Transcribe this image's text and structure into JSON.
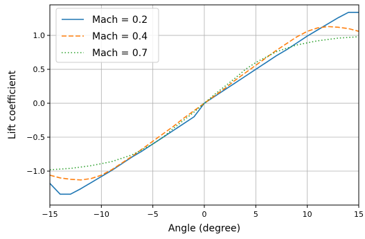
{
  "chart_data": {
    "type": "line",
    "xlabel": "Angle (degree)",
    "ylabel": "Lift coefficient",
    "xlim": [
      -15,
      15
    ],
    "ylim": [
      -1.5,
      1.45
    ],
    "xticks": [
      -15,
      -10,
      -5,
      0,
      5,
      10,
      15
    ],
    "yticks": [
      -1.0,
      -0.5,
      0.0,
      0.5,
      1.0
    ],
    "xtick_labels": [
      "−15",
      "−10",
      "−5",
      "0",
      "5",
      "10",
      "15"
    ],
    "ytick_labels": [
      "−1.0",
      "−0.5",
      "0.0",
      "0.5",
      "1.0"
    ],
    "grid": true,
    "legend_position": "top-left",
    "series": [
      {
        "name": "Mach = 0.2",
        "color": "#1f77b4",
        "style": "solid",
        "x": [
          -15,
          -14,
          -13,
          -12,
          -11,
          -10,
          -9,
          -8,
          -7,
          -6,
          -5,
          -4,
          -3,
          -2,
          -1,
          0,
          1,
          2,
          3,
          4,
          5,
          6,
          7,
          8,
          9,
          10,
          11,
          12,
          13,
          14,
          15
        ],
        "y": [
          -1.18,
          -1.34,
          -1.34,
          -1.26,
          -1.17,
          -1.08,
          -0.99,
          -0.89,
          -0.79,
          -0.7,
          -0.6,
          -0.5,
          -0.4,
          -0.3,
          -0.2,
          0.0,
          0.1,
          0.2,
          0.3,
          0.4,
          0.5,
          0.6,
          0.7,
          0.79,
          0.89,
          0.99,
          1.08,
          1.17,
          1.26,
          1.34,
          1.34
        ]
      },
      {
        "name": "Mach = 0.4",
        "color": "#ff7f0e",
        "style": "dashed",
        "x": [
          -15,
          -14,
          -13,
          -12,
          -11,
          -10,
          -9,
          -8,
          -7,
          -6,
          -5,
          -4,
          -3,
          -2,
          -1,
          0,
          1,
          2,
          3,
          4,
          5,
          6,
          7,
          8,
          9,
          10,
          11,
          12,
          13,
          14,
          15
        ],
        "y": [
          -1.06,
          -1.1,
          -1.12,
          -1.13,
          -1.11,
          -1.06,
          -0.98,
          -0.88,
          -0.78,
          -0.67,
          -0.56,
          -0.45,
          -0.34,
          -0.22,
          -0.11,
          0.0,
          0.11,
          0.22,
          0.34,
          0.45,
          0.56,
          0.67,
          0.78,
          0.88,
          0.98,
          1.06,
          1.11,
          1.13,
          1.12,
          1.1,
          1.06
        ]
      },
      {
        "name": "Mach = 0.7",
        "color": "#2ca02c",
        "style": "dotted",
        "x": [
          -15,
          -14,
          -13,
          -12,
          -11,
          -10,
          -9,
          -8,
          -7,
          -6,
          -5,
          -4,
          -3,
          -2,
          -1,
          0,
          1,
          2,
          3,
          4,
          5,
          6,
          7,
          8,
          9,
          10,
          11,
          12,
          13,
          14,
          15
        ],
        "y": [
          -0.98,
          -0.97,
          -0.96,
          -0.94,
          -0.92,
          -0.89,
          -0.86,
          -0.81,
          -0.76,
          -0.68,
          -0.6,
          -0.5,
          -0.37,
          -0.25,
          -0.13,
          0.0,
          0.13,
          0.25,
          0.37,
          0.5,
          0.6,
          0.68,
          0.76,
          0.81,
          0.86,
          0.89,
          0.92,
          0.94,
          0.96,
          0.97,
          0.98
        ]
      }
    ]
  }
}
